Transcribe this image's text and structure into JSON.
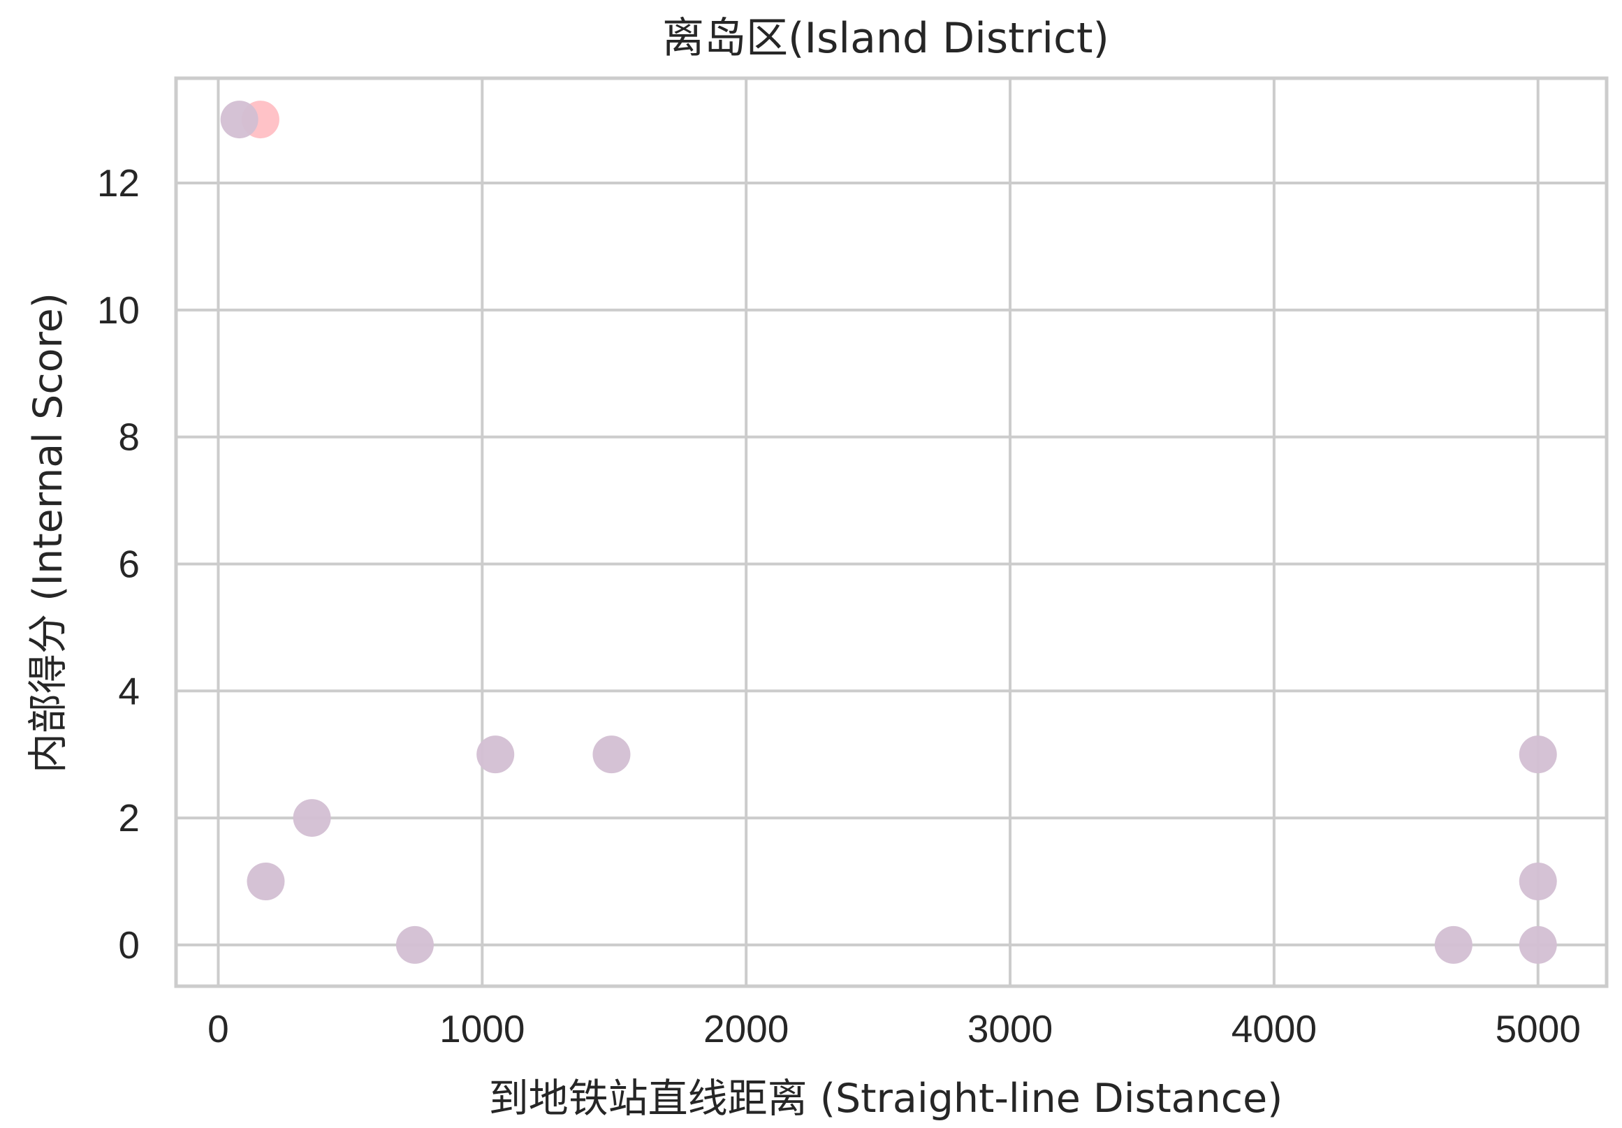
{
  "chart_data": {
    "type": "scatter",
    "title": "离岛区(Island District)",
    "xlabel": "到地铁站直线距离 (Straight-line Distance)",
    "ylabel": "内部得分 (Internal Score)",
    "xlim": [
      -160,
      5260
    ],
    "ylim": [
      -0.65,
      13.65
    ],
    "xticks": [
      0,
      1000,
      2000,
      3000,
      4000,
      5000
    ],
    "yticks": [
      0,
      2,
      4,
      6,
      8,
      10,
      12
    ],
    "grid": true,
    "legend": "none",
    "series": [
      {
        "color": "#ffbfc4",
        "points": [
          {
            "x": 160,
            "y": 13
          }
        ]
      },
      {
        "color": "#d3bfd3",
        "points": [
          {
            "x": 80,
            "y": 13
          },
          {
            "x": 180,
            "y": 1
          },
          {
            "x": 355,
            "y": 2
          },
          {
            "x": 745,
            "y": 0
          },
          {
            "x": 1050,
            "y": 3
          },
          {
            "x": 1490,
            "y": 3
          },
          {
            "x": 4680,
            "y": 0
          },
          {
            "x": 5000,
            "y": 3
          },
          {
            "x": 5000,
            "y": 1
          },
          {
            "x": 5000,
            "y": 0
          }
        ]
      }
    ]
  }
}
